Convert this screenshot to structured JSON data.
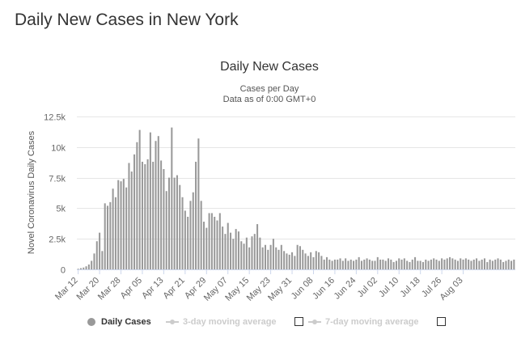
{
  "page": {
    "title": "Daily New Cases in New York"
  },
  "chart_data": {
    "type": "bar",
    "title": "Daily New Cases",
    "subtitle_line1": "Cases per Day",
    "subtitle_line2": "Data as of 0:00 GMT+0",
    "ylabel": "Novel Coronavirus Daily Cases",
    "xlabel": "",
    "ylim": [
      0,
      12500
    ],
    "y_ticks": [
      0,
      2500,
      5000,
      7500,
      10000,
      12500
    ],
    "y_tick_labels": [
      "0",
      "2.5k",
      "5k",
      "7.5k",
      "10k",
      "12.5k"
    ],
    "x_tick_labels": [
      "Mar 12",
      "Mar 20",
      "Mar 28",
      "Apr 05",
      "Apr 13",
      "Apr 21",
      "Apr 29",
      "May 07",
      "May 15",
      "May 23",
      "May 31",
      "Jun 08",
      "Jun 16",
      "Jun 24",
      "Jul 02",
      "Jul 10",
      "Jul 18",
      "Jul 26",
      "Aug 03"
    ],
    "x_tick_every": 8,
    "grid": true,
    "series": [
      {
        "name": "Daily Cases",
        "color": "#999999",
        "values": [
          50,
          100,
          150,
          250,
          400,
          700,
          1300,
          2300,
          3000,
          1500,
          5400,
          5200,
          5500,
          6600,
          5900,
          7300,
          7200,
          7400,
          6700,
          8700,
          8000,
          9400,
          10400,
          11400,
          8800,
          8600,
          9000,
          11200,
          8800,
          10500,
          10900,
          8900,
          8200,
          6400,
          7500,
          11600,
          7500,
          7700,
          6900,
          5900,
          4800,
          4300,
          5600,
          6300,
          8800,
          10700,
          5600,
          3900,
          3400,
          4600,
          4600,
          4300,
          4000,
          4600,
          3500,
          2900,
          3800,
          3000,
          2500,
          3300,
          3100,
          2300,
          2100,
          2600,
          1800,
          2700,
          2900,
          3700,
          2600,
          1800,
          2000,
          1600,
          2000,
          2500,
          1800,
          1600,
          2000,
          1500,
          1300,
          1200,
          1400,
          1100,
          2000,
          1900,
          1600,
          1300,
          1100,
          1400,
          1000,
          1500,
          1400,
          1100,
          800,
          1000,
          800,
          700,
          800,
          800,
          900,
          700,
          900,
          700,
          800,
          700,
          800,
          1000,
          700,
          800,
          900,
          800,
          700,
          700,
          1000,
          800,
          800,
          700,
          900,
          800,
          600,
          700,
          900,
          800,
          900,
          700,
          600,
          800,
          1000,
          700,
          700,
          600,
          800,
          700,
          800,
          900,
          800,
          700,
          900,
          800,
          900,
          1000,
          900,
          800,
          700,
          900,
          800,
          900,
          800,
          700,
          800,
          900,
          700,
          800,
          900,
          600,
          800,
          700,
          800,
          900,
          800,
          600,
          700,
          800,
          700,
          800
        ]
      }
    ],
    "legend": {
      "position": "bottom-center",
      "items": [
        {
          "label": "Daily Cases",
          "active": true
        },
        {
          "label": "3-day moving average",
          "active": false
        },
        {
          "label": "7-day moving average",
          "active": false
        }
      ]
    }
  }
}
